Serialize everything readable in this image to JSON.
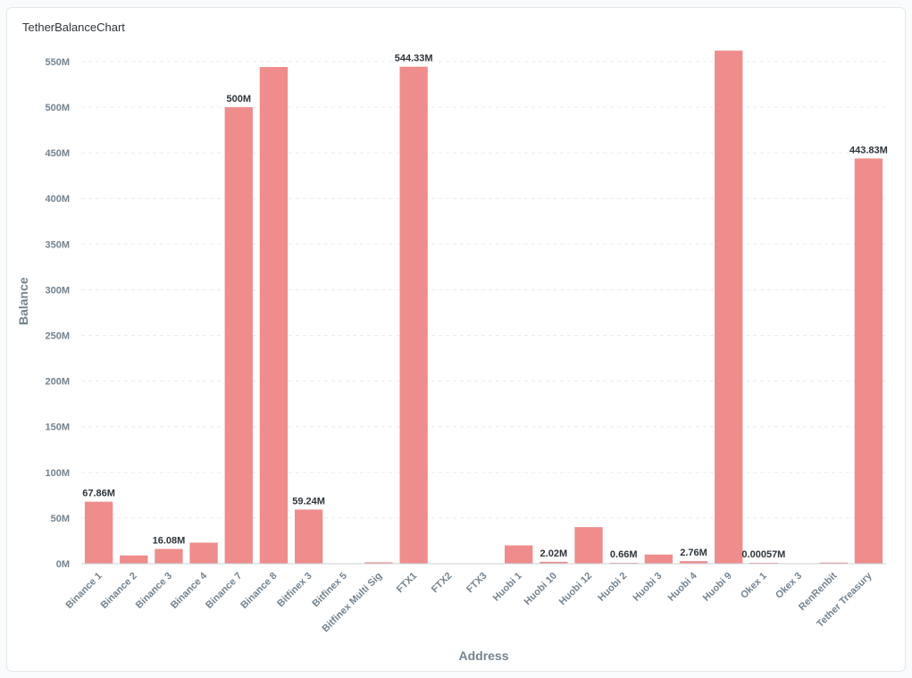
{
  "card": {
    "title": "TetherBalanceChart"
  },
  "colors": {
    "bar": "#ef8c8c",
    "grid": "#e8ecef",
    "axis": "#c9d0d6",
    "text": "#74838f"
  },
  "chart_data": {
    "type": "bar",
    "title": "TetherBalanceChart",
    "xlabel": "Address",
    "ylabel": "Balance",
    "ylim": [
      0,
      575000000
    ],
    "yticks": [
      0,
      50000000,
      100000000,
      150000000,
      200000000,
      250000000,
      300000000,
      350000000,
      400000000,
      450000000,
      500000000,
      550000000
    ],
    "ytick_labels": [
      "0M",
      "50M",
      "100M",
      "150M",
      "200M",
      "250M",
      "300M",
      "350M",
      "400M",
      "450M",
      "500M",
      "550M"
    ],
    "grid": true,
    "categories": [
      "Binance 1",
      "Binance 2",
      "Binance 3",
      "Binance 4",
      "Binance 7",
      "Binance 8",
      "Bitfinex 3",
      "Bitfinex 5",
      "Bitfinex Multi Sig",
      "FTX1",
      "FTX2",
      "FTX3",
      "Huobi 1",
      "Huobi 10",
      "Huobi 12",
      "Huobi 2",
      "Huobi 3",
      "Huobi 4",
      "Huobi 9",
      "Okex 1",
      "Okex 3",
      "RenRenbit",
      "Tether Treasury"
    ],
    "values": [
      67860000,
      9000000,
      16080000,
      23000000,
      500000000,
      544000000,
      59240000,
      0,
      1500000,
      544330000,
      0,
      0,
      20000000,
      2020000,
      40000000,
      660000,
      10000000,
      2760000,
      562000000,
      570,
      0,
      1200000,
      443830000
    ],
    "data_labels": [
      "67.86M",
      "",
      "16.08M",
      "",
      "500M",
      "",
      "59.24M",
      "",
      "",
      "544.33M",
      "",
      "",
      "",
      "2.02M",
      "",
      "0.66M",
      "",
      "2.76M",
      "",
      "0.00057M",
      "",
      "",
      "443.83M"
    ]
  }
}
